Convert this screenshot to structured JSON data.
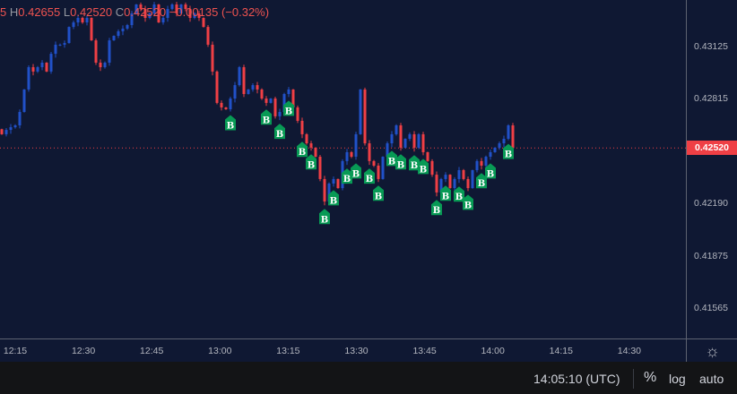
{
  "legend": {
    "open_partial": "5",
    "h_label": "H",
    "high": "0.42655",
    "l_label": "L",
    "low": "0.42520",
    "c_label": "C",
    "close": "0.42520",
    "change": "−0.00135 (−0.32%)"
  },
  "colors": {
    "up": "#2151c8",
    "down": "#ef3f45",
    "marker": "#089a55",
    "background": "#0f1833"
  },
  "price_axis": {
    "labels": [
      "0.43125",
      "0.42815",
      "0.42190",
      "0.41875",
      "0.41565"
    ],
    "label_prices": [
      0.43125,
      0.42815,
      0.4219,
      0.41875,
      0.41565
    ],
    "current": "0.42520",
    "current_price": 0.4252
  },
  "time_axis": {
    "labels": [
      "12:15",
      "12:30",
      "12:45",
      "13:00",
      "13:15",
      "13:30",
      "13:45",
      "14:00",
      "14:15",
      "14:30"
    ]
  },
  "settings_icon": "gear-icon",
  "bottom_bar": {
    "clock": "14:05:10 (UTC)",
    "percent": "%",
    "log": "log",
    "auto": "auto"
  },
  "chart_data": {
    "type": "candlestick",
    "interval_minutes": 1,
    "first_bar_time": "12:12",
    "closes": [
      0.42602,
      0.42628,
      0.42644,
      0.42655,
      0.42735,
      0.42869,
      0.43002,
      0.42976,
      0.43002,
      0.43029,
      0.42976,
      0.43082,
      0.43136,
      0.43136,
      0.43146,
      0.43242,
      0.43269,
      0.43296,
      0.43269,
      0.43296,
      0.43162,
      0.43029,
      0.43002,
      0.43029,
      0.43162,
      0.43189,
      0.43216,
      0.43232,
      0.43253,
      0.43323,
      0.43376,
      0.43349,
      0.43296,
      0.43323,
      0.43376,
      0.43269,
      0.43296,
      0.43349,
      0.43376,
      0.43323,
      0.43376,
      0.43349,
      0.43296,
      0.43323,
      0.43296,
      0.43242,
      0.43136,
      0.42976,
      0.42789,
      0.42762,
      0.42751,
      0.42815,
      0.42895,
      0.43002,
      0.42842,
      0.42869,
      0.42895,
      0.42869,
      0.42815,
      0.42789,
      0.42815,
      0.42709,
      0.42735,
      0.42842,
      0.42869,
      0.42762,
      0.42682,
      0.42602,
      0.42548,
      0.42522,
      0.42468,
      0.42335,
      0.42201,
      0.42308,
      0.42335,
      0.42281,
      0.42442,
      0.42495,
      0.42468,
      0.42602,
      0.42869,
      0.42548,
      0.42442,
      0.42415,
      0.42335,
      0.42468,
      0.42548,
      0.42602,
      0.42655,
      0.42522,
      0.42575,
      0.42602,
      0.42522,
      0.42602,
      0.42495,
      0.42442,
      0.42361,
      0.42255,
      0.42335,
      0.42361,
      0.42281,
      0.42335,
      0.42388,
      0.42335,
      0.42281,
      0.42388,
      0.42442,
      0.42415,
      0.42468,
      0.42495,
      0.42522,
      0.42548,
      0.42575,
      0.42655,
      0.4252
    ],
    "buy_marker_label": "B",
    "buy_marker_bars": [
      51,
      59,
      62,
      64,
      67,
      69,
      72,
      74,
      77,
      79,
      82,
      84,
      87,
      89,
      92,
      94,
      97,
      99,
      102,
      104,
      107,
      109,
      113
    ]
  }
}
